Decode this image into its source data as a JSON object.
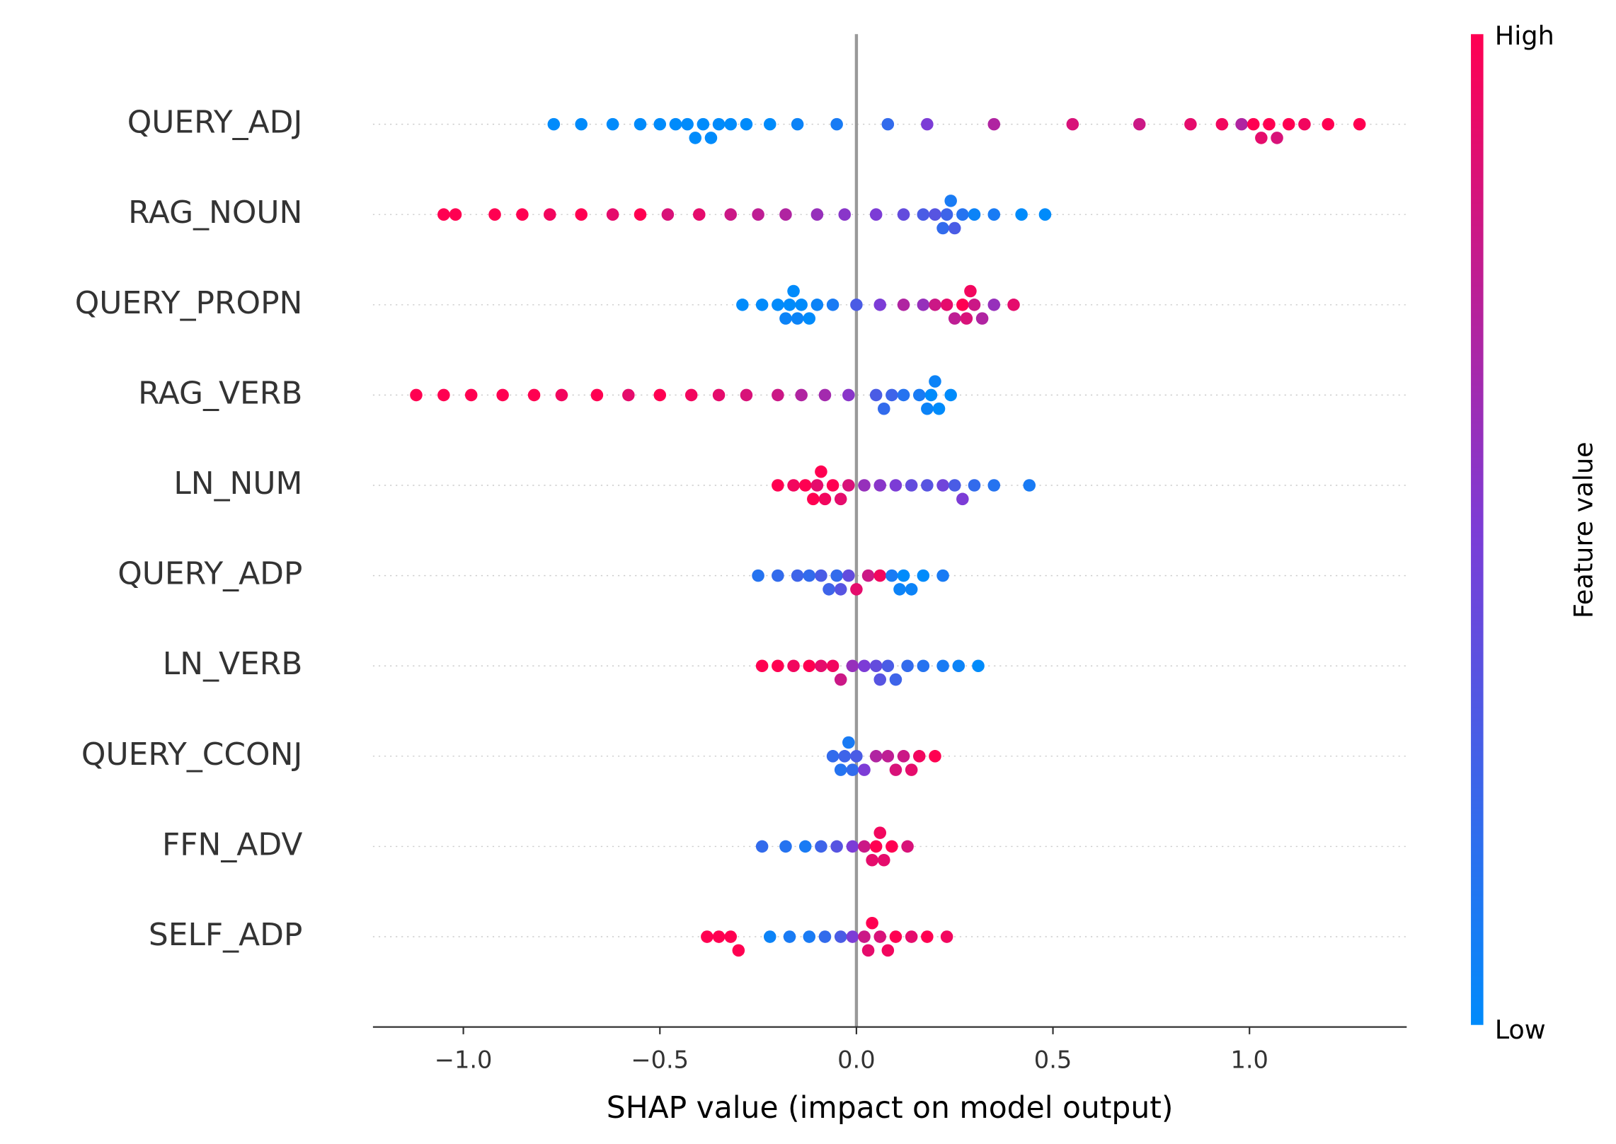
{
  "chart_data": {
    "type": "beeswarm",
    "xlabel": "SHAP value (impact on model output)",
    "xlim": [
      -1.23,
      1.4
    ],
    "xticks": [
      {
        "value": -1,
        "label": "−1.0"
      },
      {
        "value": -0.5,
        "label": "−0.5"
      },
      {
        "value": 0,
        "label": "0.0"
      },
      0.5,
      {
        "value": 1,
        "label": "1.0"
      }
    ],
    "reference_line": 0,
    "grid": true,
    "colorbar": {
      "label": "Feature value",
      "high": "High",
      "low": "Low",
      "colors": [
        "#008bfb",
        "#7c3cd6",
        "#ff0051"
      ]
    },
    "features": [
      {
        "name": "QUERY_ADJ",
        "values": [
          -0.77,
          -0.7,
          -0.62,
          -0.55,
          -0.5,
          -0.46,
          -0.43,
          -0.41,
          -0.39,
          -0.37,
          -0.35,
          -0.32,
          -0.28,
          -0.22,
          -0.15,
          -0.05,
          0.08,
          0.18,
          0.35,
          0.55,
          0.72,
          0.85,
          0.93,
          0.98,
          1.01,
          1.03,
          1.05,
          1.07,
          1.1,
          1.14,
          1.2,
          1.28
        ],
        "feature_values": [
          0,
          0,
          0,
          0,
          0,
          0,
          0,
          0,
          0,
          0,
          0,
          0,
          0,
          0,
          0.05,
          0.1,
          0.2,
          0.5,
          0.7,
          0.85,
          0.8,
          0.9,
          0.95,
          0.7,
          1,
          0.9,
          1,
          0.85,
          1,
          0.95,
          1,
          1
        ]
      },
      {
        "name": "RAG_NOUN",
        "values": [
          -1.05,
          -1.02,
          -0.92,
          -0.85,
          -0.78,
          -0.7,
          -0.62,
          -0.55,
          -0.48,
          -0.4,
          -0.32,
          -0.25,
          -0.18,
          -0.1,
          -0.03,
          0.05,
          0.12,
          0.17,
          0.2,
          0.22,
          0.23,
          0.24,
          0.25,
          0.27,
          0.3,
          0.35,
          0.42,
          0.48
        ],
        "feature_values": [
          1,
          1,
          1,
          1,
          0.95,
          1,
          0.9,
          1,
          0.85,
          0.9,
          0.8,
          0.75,
          0.7,
          0.6,
          0.55,
          0.5,
          0.4,
          0.3,
          0.35,
          0.2,
          0.25,
          0.1,
          0.3,
          0.15,
          0.05,
          0.1,
          0,
          0
        ]
      },
      {
        "name": "QUERY_PROPN",
        "values": [
          -0.29,
          -0.24,
          -0.2,
          -0.18,
          -0.17,
          -0.16,
          -0.15,
          -0.14,
          -0.12,
          -0.1,
          -0.06,
          0.0,
          0.06,
          0.12,
          0.17,
          0.2,
          0.23,
          0.25,
          0.27,
          0.28,
          0.29,
          0.3,
          0.32,
          0.35,
          0.4
        ],
        "feature_values": [
          0,
          0,
          0,
          0.05,
          0,
          0,
          0.05,
          0,
          0,
          0.05,
          0.1,
          0.3,
          0.5,
          0.7,
          0.6,
          0.8,
          0.9,
          0.75,
          1,
          0.85,
          0.95,
          0.8,
          0.7,
          0.6,
          0.9
        ]
      },
      {
        "name": "RAG_VERB",
        "values": [
          -1.12,
          -1.05,
          -0.98,
          -0.9,
          -0.82,
          -0.75,
          -0.66,
          -0.58,
          -0.5,
          -0.42,
          -0.35,
          -0.28,
          -0.2,
          -0.14,
          -0.08,
          -0.02,
          0.05,
          0.07,
          0.09,
          0.12,
          0.16,
          0.18,
          0.19,
          0.2,
          0.21,
          0.24
        ],
        "feature_values": [
          1,
          1,
          1,
          1,
          1,
          0.95,
          1,
          0.9,
          1,
          0.95,
          0.9,
          0.85,
          0.8,
          0.7,
          0.65,
          0.55,
          0.3,
          0.2,
          0.25,
          0.15,
          0.1,
          0.05,
          0,
          0.05,
          0,
          0
        ]
      },
      {
        "name": "LN_NUM",
        "values": [
          -0.2,
          -0.16,
          -0.13,
          -0.11,
          -0.1,
          -0.09,
          -0.08,
          -0.06,
          -0.04,
          -0.02,
          0.02,
          0.06,
          0.1,
          0.14,
          0.18,
          0.22,
          0.25,
          0.27,
          0.3,
          0.35,
          0.44
        ],
        "feature_values": [
          1,
          0.95,
          1,
          1,
          0.9,
          1,
          0.95,
          1,
          0.9,
          0.85,
          0.6,
          0.55,
          0.5,
          0.4,
          0.35,
          0.45,
          0.3,
          0.5,
          0.2,
          0.15,
          0.1
        ]
      },
      {
        "name": "QUERY_ADP",
        "values": [
          -0.25,
          -0.2,
          -0.15,
          -0.12,
          -0.09,
          -0.07,
          -0.05,
          -0.04,
          -0.02,
          0.0,
          0.03,
          0.06,
          0.09,
          0.11,
          0.12,
          0.14,
          0.17,
          0.22
        ],
        "feature_values": [
          0.15,
          0.2,
          0.25,
          0.2,
          0.3,
          0.25,
          0.2,
          0.35,
          0.4,
          0.9,
          0.8,
          0.95,
          0.1,
          0.05,
          0,
          0.05,
          0,
          0.1
        ]
      },
      {
        "name": "LN_VERB",
        "values": [
          -0.24,
          -0.2,
          -0.16,
          -0.12,
          -0.09,
          -0.06,
          -0.04,
          -0.01,
          0.02,
          0.05,
          0.06,
          0.08,
          0.1,
          0.13,
          0.17,
          0.22,
          0.26,
          0.31
        ],
        "feature_values": [
          1,
          1,
          0.95,
          1,
          0.9,
          0.95,
          0.8,
          0.6,
          0.5,
          0.4,
          0.35,
          0.3,
          0.25,
          0.2,
          0.15,
          0.1,
          0.05,
          0
        ]
      },
      {
        "name": "QUERY_CCONJ",
        "values": [
          -0.06,
          -0.04,
          -0.03,
          -0.02,
          -0.01,
          0.0,
          0.02,
          0.05,
          0.08,
          0.1,
          0.12,
          0.14,
          0.16,
          0.2
        ],
        "feature_values": [
          0.2,
          0.15,
          0.25,
          0.1,
          0.2,
          0.3,
          0.5,
          0.7,
          0.75,
          0.85,
          0.8,
          0.9,
          0.95,
          1
        ]
      },
      {
        "name": "FFN_ADV",
        "values": [
          -0.24,
          -0.18,
          -0.13,
          -0.09,
          -0.05,
          -0.01,
          0.02,
          0.04,
          0.05,
          0.06,
          0.07,
          0.09,
          0.13
        ],
        "feature_values": [
          0.2,
          0.15,
          0.1,
          0.25,
          0.35,
          0.5,
          0.8,
          0.9,
          1,
          0.95,
          0.9,
          1,
          0.85
        ]
      },
      {
        "name": "SELF_ADP",
        "values": [
          -0.38,
          -0.35,
          -0.32,
          -0.3,
          -0.22,
          -0.17,
          -0.12,
          -0.08,
          -0.04,
          -0.01,
          0.02,
          0.03,
          0.04,
          0.06,
          0.08,
          0.1,
          0.14,
          0.18,
          0.23
        ],
        "feature_values": [
          1,
          1,
          1,
          1,
          0.05,
          0.1,
          0.1,
          0.2,
          0.3,
          0.5,
          0.8,
          0.9,
          1,
          0.85,
          0.95,
          1,
          0.9,
          1,
          0.95
        ]
      }
    ]
  }
}
